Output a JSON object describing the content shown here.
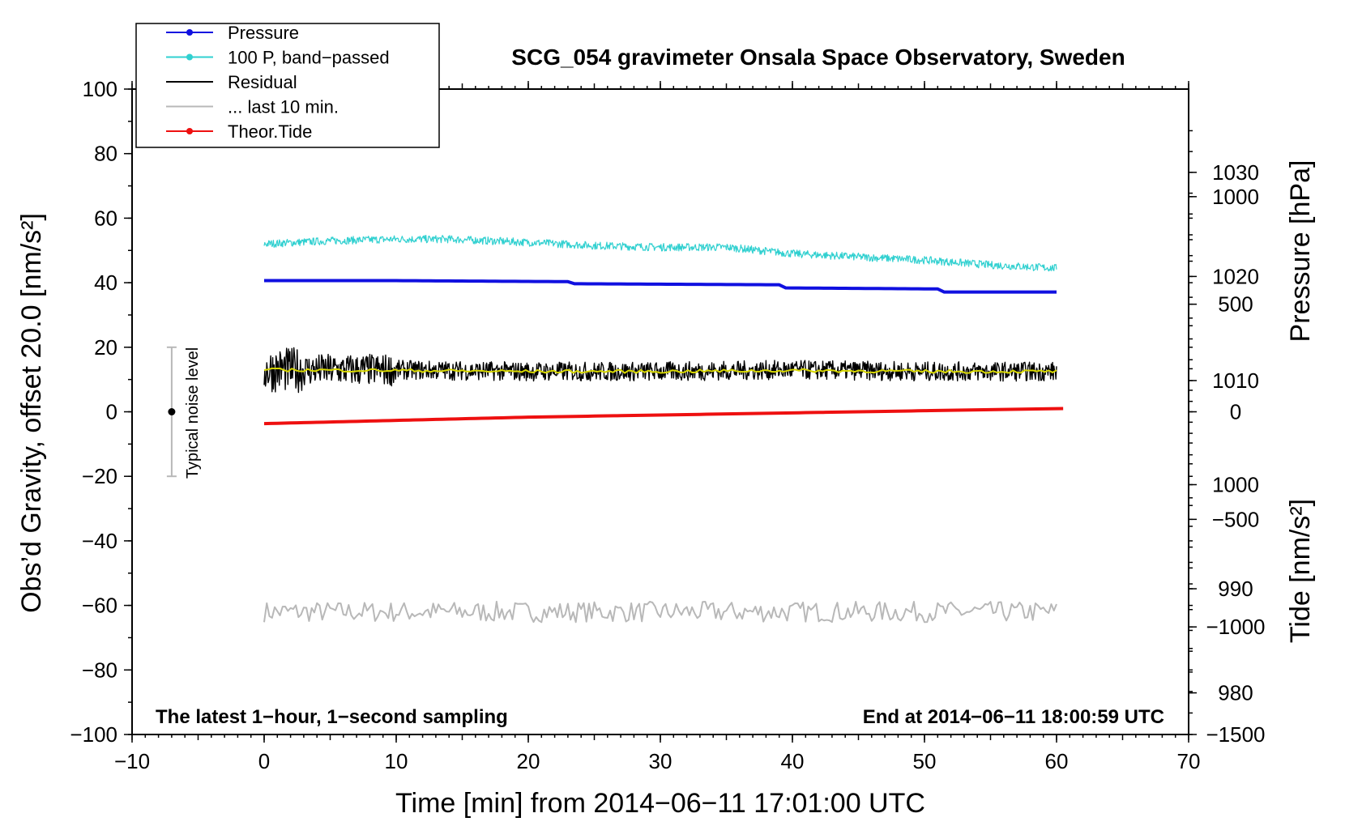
{
  "chart_data": {
    "type": "line",
    "title": "SCG_054 gravimeter Onsala Space Observatory, Sweden",
    "xlabel": "Time [min] from 2014−06−11 17:01:00 UTC",
    "ylabel_left": "Obs’d Gravity, offset 20.0 [nm/s²]",
    "ylabel_pressure": "Pressure [hPa]",
    "ylabel_tide": "Tide [nm/s²]",
    "xlim": [
      -10,
      70
    ],
    "ylim_left": [
      -100,
      100
    ],
    "ylim_pressure": [
      976,
      1038
    ],
    "ylim_tide": [
      -1500,
      1500
    ],
    "x_ticks": [
      "−10",
      "0",
      "10",
      "20",
      "30",
      "40",
      "50",
      "60",
      "70"
    ],
    "x_tick_values": [
      -10,
      0,
      10,
      20,
      30,
      40,
      50,
      60,
      70
    ],
    "y_left_ticks": [
      "100",
      "80",
      "60",
      "40",
      "20",
      "0",
      "−20",
      "−40",
      "−60",
      "−80",
      "−100"
    ],
    "y_left_tick_values": [
      100,
      80,
      60,
      40,
      20,
      0,
      -20,
      -40,
      -60,
      -80,
      -100
    ],
    "y_pressure_ticks": [
      "1030",
      "1020",
      "1010",
      "1000",
      "990",
      "980"
    ],
    "y_pressure_tick_values": [
      1030,
      1020,
      1010,
      1000,
      990,
      980
    ],
    "y_tide_ticks": [
      "1000",
      "500",
      "0",
      "−500",
      "−1000",
      "−1500"
    ],
    "y_tide_tick_values": [
      1000,
      500,
      0,
      -500,
      -1000,
      -1500
    ],
    "legend": [
      {
        "label": "Pressure",
        "color": "#1010e0",
        "marker": true
      },
      {
        "label": "100 P, band−passed",
        "color": "#30d0d0",
        "marker": true
      },
      {
        "label": "Residual",
        "color": "#000000",
        "marker": false
      },
      {
        "label": "... last 10 min.",
        "color": "#b8b8b8",
        "marker": false
      },
      {
        "label": "Theor.Tide",
        "color": "#ee1010",
        "marker": true
      }
    ],
    "legend_position": "top-left",
    "series": [
      {
        "name": "Pressure",
        "axis": "pressure",
        "color": "#1010e0",
        "x": [
          0,
          10,
          23,
          23.5,
          39,
          39.5,
          51,
          51.5,
          60
        ],
        "y": [
          1019.6,
          1019.6,
          1019.5,
          1019.3,
          1019.2,
          1018.9,
          1018.8,
          1018.5,
          1018.5
        ]
      },
      {
        "name": "100 P, band−passed",
        "axis": "left",
        "color": "#30d0d0",
        "x": [
          0,
          5,
          10,
          14,
          20,
          25,
          30,
          35,
          40,
          45,
          50,
          55,
          60
        ],
        "y": [
          52,
          53,
          53.5,
          53.5,
          52.5,
          51.5,
          51,
          51,
          49,
          48,
          47,
          45.5,
          44.5
        ]
      },
      {
        "name": "Residual",
        "axis": "left",
        "color": "#000000",
        "x": [
          0,
          10,
          20,
          30,
          40,
          50,
          60
        ],
        "y": [
          13,
          13,
          12.5,
          12.5,
          13,
          12.5,
          12.5
        ]
      },
      {
        "name": "Residual smoothed",
        "axis": "left",
        "color": "#d8d800",
        "x": [
          0,
          10,
          20,
          30,
          40,
          50,
          60
        ],
        "y": [
          13,
          12.8,
          12.5,
          12.5,
          12.8,
          12.5,
          12.5
        ]
      },
      {
        "name": "... last 10 min.",
        "axis": "left",
        "color": "#b8b8b8",
        "x": [
          0,
          10,
          20,
          30,
          40,
          50,
          60
        ],
        "y": [
          -62,
          -62,
          -62,
          -62,
          -62,
          -62,
          -62
        ]
      },
      {
        "name": "Theor.Tide",
        "axis": "tide",
        "color": "#ee1010",
        "x": [
          0,
          10,
          20,
          30,
          40,
          50,
          60.5
        ],
        "y": [
          -55,
          -40,
          -25,
          -15,
          -5,
          5,
          15
        ]
      }
    ],
    "noise_marker": {
      "label": "Typical noise level",
      "x": -7,
      "y": 0,
      "range": [
        -20,
        20
      ]
    },
    "notes": [
      "The latest 1−hour, 1−second sampling",
      "End at 2014−06−11 18:00:59 UTC"
    ],
    "grid": false
  }
}
